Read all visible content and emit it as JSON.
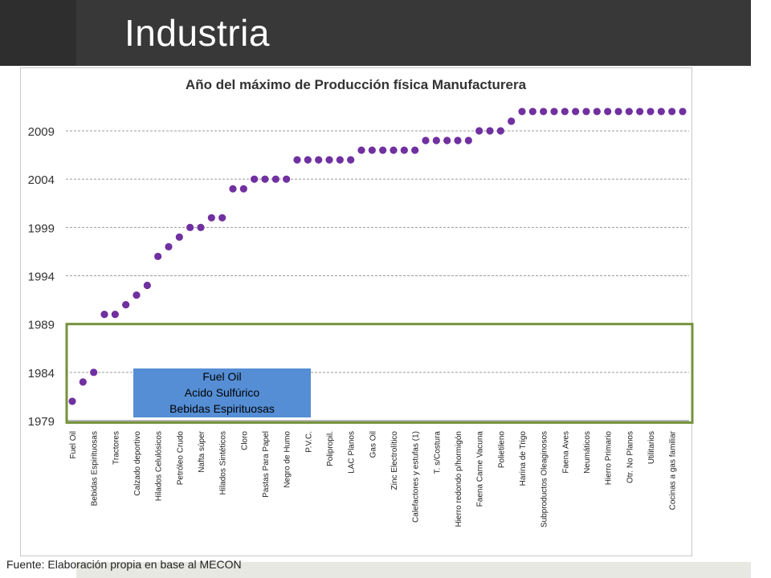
{
  "slide": {
    "title": "Industria",
    "source": "Fuente: Elaboración propia en base al MECON"
  },
  "chart_data": {
    "type": "scatter",
    "title": "Año del máximo de Producción física Manufacturera",
    "xlabel": "",
    "ylabel": "",
    "ylim": [
      1979,
      2011
    ],
    "yticks": [
      1979,
      1984,
      1989,
      1994,
      1999,
      2004,
      2009
    ],
    "grid": true,
    "marker_color": "#7030a0",
    "x_tick_labels": [
      "Fuel Oil",
      "Bebidas Espirituosas",
      "Tractores",
      "Calzado deportivo",
      "Hilados Celulósicos",
      "Petróleo Crudo",
      "Nafta súper",
      "Hilados Sintéticos",
      "Cloro",
      "Pastas Para Papel",
      "Negro de Humo",
      "P.V.C.",
      "Polipropil.",
      "LAC Planos",
      "Gas Oil",
      "Zinc Electrolítico",
      "Calefactores y estufas (1)",
      "T. s/Costura",
      "Hierro redondo p/hormigón",
      "Faena Carne Vacuna",
      "Polietileno",
      "Harina de Trigo",
      "Subproductos Oleaginosos",
      "Faena Aves",
      "Neumáticos",
      "Hierro Primario",
      "Otr. No Planos",
      "Utilitarios",
      "Cocinas a gas familiar"
    ],
    "values": [
      1981,
      1983,
      1984,
      1990,
      1990,
      1991,
      1992,
      1993,
      1996,
      1997,
      1998,
      1999,
      1999,
      2000,
      2000,
      2003,
      2003,
      2004,
      2004,
      2004,
      2004,
      2006,
      2006,
      2006,
      2006,
      2006,
      2006,
      2007,
      2007,
      2007,
      2007,
      2007,
      2007,
      2008,
      2008,
      2008,
      2008,
      2008,
      2009,
      2009,
      2009,
      2010,
      2011,
      2011,
      2011,
      2011,
      2011,
      2011,
      2011,
      2011,
      2011,
      2011,
      2011,
      2011,
      2011,
      2011,
      2011,
      2011
    ],
    "highlight_box": {
      "y_range": [
        1978.8,
        1989
      ],
      "border_color": "#76923c"
    },
    "annotation": {
      "lines": [
        "Fuel Oil",
        "Acido Sulfúrico",
        "Bebidas Espirituosas"
      ],
      "background": "#558ed5"
    }
  }
}
